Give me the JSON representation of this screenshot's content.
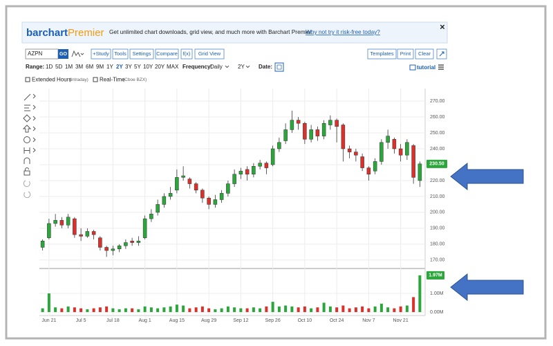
{
  "banner": {
    "logo_main": "barchart",
    "logo_accent": "Premier",
    "text": "Get unlimited chart downloads, grid view, and much more with Barchart Premier.",
    "link": "Why not try it risk-free today?",
    "close": "✕"
  },
  "toolbar": {
    "symbol": "AZPN",
    "go": "GO",
    "buttons": [
      "+Study",
      "Tools",
      "Settings",
      "Compare",
      "f(x)",
      "Grid View"
    ],
    "right_buttons": [
      "Templates",
      "Print",
      "Clear"
    ]
  },
  "range_bar": {
    "label": "Range:",
    "options": [
      "1D",
      "5D",
      "1M",
      "3M",
      "6M",
      "9M",
      "1Y",
      "2Y",
      "3Y",
      "5Y",
      "10Y",
      "20Y",
      "MAX"
    ],
    "frequency_label": "Frequency:",
    "frequency": "Daily",
    "period": "2Y",
    "date_label": "Date:",
    "tutorial": "tutorial"
  },
  "options": {
    "extended": "Extended Hours",
    "extended_note": "(Intraday)",
    "realtime": "Real-Time",
    "realtime_note": "(Cboe BZX)"
  },
  "chart_data": {
    "type": "candlestick",
    "categories": [
      null,
      "Jun 21",
      null,
      null,
      null,
      null,
      "Jul 5",
      null,
      null,
      null,
      null,
      "Jul 18",
      null,
      null,
      null,
      null,
      "Aug 1",
      null,
      null,
      null,
      null,
      "Aug 15",
      null,
      null,
      null,
      null,
      "Aug 29",
      null,
      null,
      null,
      null,
      "Sep 12",
      null,
      null,
      null,
      null,
      "Sep 26",
      null,
      null,
      null,
      null,
      "Oct 10",
      null,
      null,
      null,
      null,
      "Oct 24",
      null,
      null,
      null,
      null,
      "Nov 7",
      null,
      null,
      null,
      null,
      "Nov 21",
      null,
      null,
      null
    ],
    "open": [
      178,
      184,
      193,
      195,
      192,
      196,
      186,
      185,
      188,
      184,
      178,
      176,
      177,
      179,
      182,
      181,
      184,
      196,
      200,
      205,
      210,
      214,
      222,
      221,
      218,
      214,
      209,
      205,
      208,
      212,
      218,
      224,
      227,
      224,
      229,
      231,
      230,
      240,
      245,
      252,
      258,
      256,
      246,
      252,
      248,
      255,
      258,
      255,
      240,
      238,
      235,
      228,
      226,
      232,
      244,
      246,
      240,
      236,
      242,
      220
    ],
    "high": [
      183,
      196,
      199,
      197,
      199,
      197,
      190,
      190,
      189,
      185,
      179,
      179,
      180,
      183,
      184,
      185,
      198,
      202,
      208,
      212,
      216,
      227,
      229,
      222,
      219,
      215,
      210,
      211,
      214,
      220,
      227,
      228,
      229,
      231,
      233,
      232,
      242,
      247,
      256,
      264,
      260,
      257,
      255,
      254,
      258,
      261,
      259,
      256,
      242,
      240,
      237,
      229,
      234,
      246,
      252,
      247,
      243,
      246,
      243,
      232
    ],
    "low": [
      176,
      183,
      191,
      190,
      190,
      184,
      182,
      184,
      183,
      176,
      172,
      173,
      175,
      177,
      179,
      179,
      183,
      194,
      198,
      203,
      208,
      212,
      220,
      215,
      212,
      206,
      202,
      203,
      206,
      210,
      216,
      221,
      220,
      222,
      227,
      224,
      229,
      238,
      243,
      250,
      252,
      243,
      244,
      245,
      246,
      252,
      244,
      232,
      234,
      232,
      226,
      220,
      224,
      230,
      240,
      237,
      232,
      233,
      218,
      216
    ],
    "close": [
      182,
      193,
      195,
      192,
      197,
      186,
      185,
      188,
      186,
      178,
      176,
      177,
      179,
      181,
      181,
      182,
      196,
      199,
      205,
      210,
      212,
      222,
      223,
      218,
      214,
      209,
      205,
      208,
      212,
      218,
      224,
      226,
      224,
      229,
      231,
      228,
      240,
      244,
      252,
      258,
      256,
      246,
      252,
      248,
      256,
      258,
      254,
      240,
      238,
      236,
      228,
      224,
      232,
      244,
      248,
      240,
      236,
      244,
      222,
      230.5
    ],
    "volume": [
      0.2,
      1.0,
      0.25,
      0.2,
      0.3,
      0.25,
      0.2,
      0.15,
      0.2,
      0.25,
      0.3,
      0.2,
      0.15,
      0.2,
      0.2,
      0.15,
      0.3,
      0.25,
      0.2,
      0.25,
      0.3,
      0.4,
      0.35,
      0.2,
      0.25,
      0.3,
      0.2,
      0.15,
      0.2,
      0.3,
      0.25,
      0.2,
      0.2,
      0.25,
      0.2,
      0.3,
      0.55,
      0.3,
      0.35,
      0.3,
      0.25,
      0.3,
      0.2,
      0.25,
      0.5,
      0.3,
      0.25,
      0.35,
      0.2,
      0.25,
      0.3,
      0.2,
      0.3,
      0.45,
      0.25,
      0.2,
      0.3,
      0.35,
      0.8,
      1.97
    ],
    "up_color": "#2aa63b",
    "down_color": "#d9312b",
    "ylim": [
      166,
      277
    ],
    "yticks": [
      {
        "value": 170,
        "label": "170.00"
      },
      {
        "value": 180,
        "label": "180.00"
      },
      {
        "value": 190,
        "label": "190.00"
      },
      {
        "value": 200,
        "label": "200.00"
      },
      {
        "value": 210,
        "label": "210.00"
      },
      {
        "value": 220,
        "label": "220.00"
      },
      {
        "value": 230,
        "label": "230.00"
      },
      {
        "value": 240,
        "label": "240.00"
      },
      {
        "value": 250,
        "label": "250.00"
      },
      {
        "value": 260,
        "label": "260.00"
      },
      {
        "value": 270,
        "label": "270.00"
      }
    ],
    "volume_ylim": [
      -0.15,
      2.26
    ],
    "volume_yticks": [
      {
        "value": 0,
        "label": "0.00M"
      },
      {
        "value": 1,
        "label": "1.00M"
      }
    ],
    "price_tag": {
      "value": 230.5,
      "label": "230.50"
    },
    "volume_tag": {
      "value": 1.97,
      "label": "1.97M"
    },
    "grid": true
  }
}
